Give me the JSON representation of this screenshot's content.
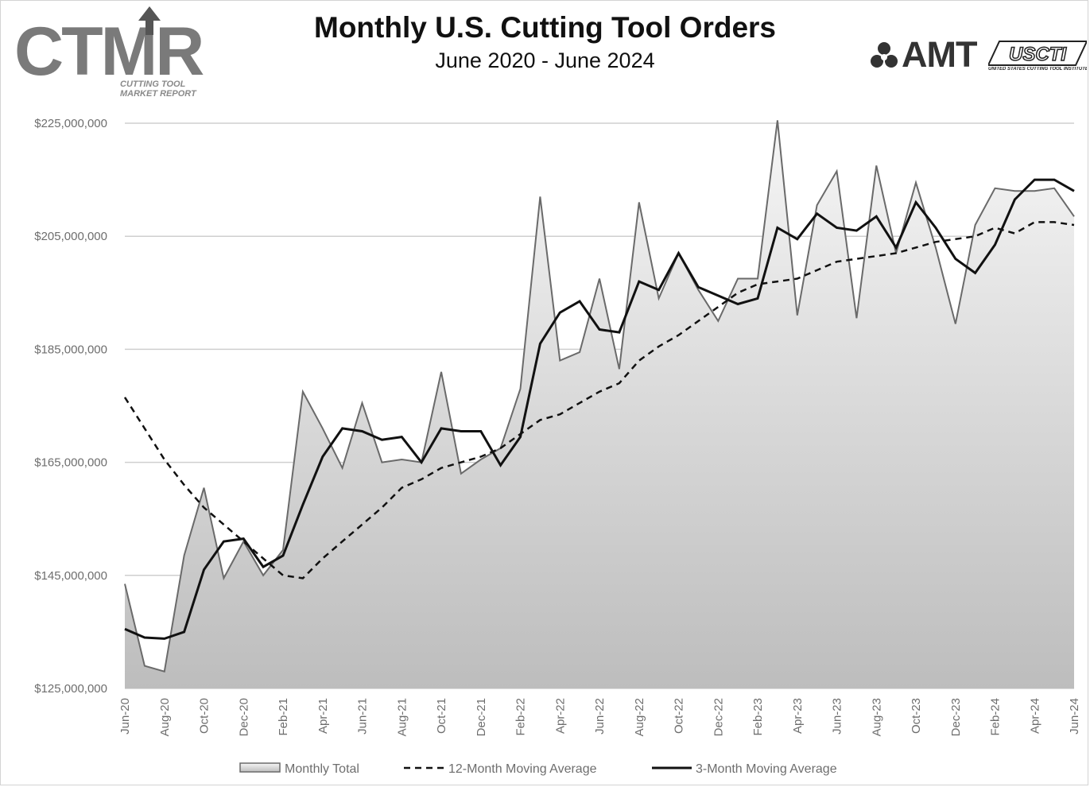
{
  "header": {
    "title": "Monthly U.S. Cutting Tool Orders",
    "subtitle": "June 2020 - June 2024"
  },
  "logos": {
    "ctmr": {
      "wordmark": "CTMR",
      "line1": "CUTTING TOOL",
      "line2": "MARKET REPORT"
    },
    "amt": {
      "wordmark": "AMT"
    },
    "usci": {
      "wordmark": "USCTI",
      "tagline": "UNITED STATES CUTTING TOOL INSTITUTE"
    }
  },
  "colors": {
    "area_top": "#f6f6f6",
    "area_bottom": "#bdbdbd",
    "monthly_line": "#6a6a6a",
    "moving_average": "#111111",
    "grid": "#cfcfcf"
  },
  "chart_data": {
    "type": "area",
    "title": "Monthly U.S. Cutting Tool Orders",
    "subtitle": "June 2020 - June 2024",
    "xlabel": "",
    "ylabel": "",
    "ylim": [
      125000000,
      225000000
    ],
    "yticks": [
      125000000,
      145000000,
      165000000,
      185000000,
      205000000,
      225000000
    ],
    "ytick_labels": [
      "$125,000,000",
      "$145,000,000",
      "$165,000,000",
      "$185,000,000",
      "$205,000,000",
      "$225,000,000"
    ],
    "grid": "horizontal",
    "legend_position": "bottom",
    "x": [
      "Jun-20",
      "Jul-20",
      "Aug-20",
      "Sep-20",
      "Oct-20",
      "Nov-20",
      "Dec-20",
      "Jan-21",
      "Feb-21",
      "Mar-21",
      "Apr-21",
      "May-21",
      "Jun-21",
      "Jul-21",
      "Aug-21",
      "Sep-21",
      "Oct-21",
      "Nov-21",
      "Dec-21",
      "Jan-22",
      "Feb-22",
      "Mar-22",
      "Apr-22",
      "May-22",
      "Jun-22",
      "Jul-22",
      "Aug-22",
      "Sep-22",
      "Oct-22",
      "Nov-22",
      "Dec-22",
      "Jan-23",
      "Feb-23",
      "Mar-23",
      "Apr-23",
      "May-23",
      "Jun-23",
      "Jul-23",
      "Aug-23",
      "Sep-23",
      "Oct-23",
      "Nov-23",
      "Dec-23",
      "Jan-24",
      "Feb-24",
      "Mar-24",
      "Apr-24",
      "May-24",
      "Jun-24"
    ],
    "xtick_labels": [
      "Jun-20",
      "Aug-20",
      "Oct-20",
      "Dec-20",
      "Feb-21",
      "Apr-21",
      "Jun-21",
      "Aug-21",
      "Oct-21",
      "Dec-21",
      "Feb-22",
      "Apr-22",
      "Jun-22",
      "Aug-22",
      "Oct-22",
      "Dec-22",
      "Feb-23",
      "Apr-23",
      "Jun-23",
      "Aug-23",
      "Oct-23",
      "Dec-23",
      "Feb-24",
      "Apr-24",
      "Jun-24"
    ],
    "series": [
      {
        "name": "Monthly Total",
        "style": "area",
        "values": [
          143500000,
          129000000,
          128000000,
          148500000,
          160500000,
          144500000,
          151000000,
          145000000,
          149500000,
          177500000,
          171000000,
          164000000,
          175500000,
          165000000,
          165500000,
          165000000,
          181000000,
          163000000,
          165500000,
          167500000,
          178000000,
          212000000,
          183000000,
          184500000,
          197500000,
          181500000,
          211000000,
          194000000,
          202000000,
          195500000,
          190000000,
          197500000,
          197500000,
          225500000,
          191000000,
          210500000,
          216500000,
          190500000,
          217500000,
          202000000,
          214500000,
          203000000,
          189500000,
          207000000,
          213500000,
          213000000,
          213000000,
          213500000,
          208500000
        ]
      },
      {
        "name": "12-Month Moving Average",
        "style": "dashed",
        "values": [
          176500000,
          171000000,
          165500000,
          161000000,
          157000000,
          154000000,
          151000000,
          148000000,
          145000000,
          144500000,
          148000000,
          151000000,
          154000000,
          157000000,
          160500000,
          162000000,
          164000000,
          165000000,
          166000000,
          167500000,
          170000000,
          172500000,
          173500000,
          175500000,
          177500000,
          179000000,
          183000000,
          185500000,
          187500000,
          190000000,
          192500000,
          195000000,
          196500000,
          197000000,
          197500000,
          199000000,
          200500000,
          201000000,
          201500000,
          202000000,
          203000000,
          204000000,
          204500000,
          205000000,
          206500000,
          205500000,
          207500000,
          207500000,
          207000000
        ]
      },
      {
        "name": "3-Month Moving Average",
        "style": "solid",
        "values": [
          135500000,
          134000000,
          133800000,
          135000000,
          146000000,
          151000000,
          151500000,
          146500000,
          148500000,
          157500000,
          166000000,
          171000000,
          170500000,
          169000000,
          169500000,
          165000000,
          171000000,
          170500000,
          170500000,
          164500000,
          169500000,
          186000000,
          191500000,
          193500000,
          188500000,
          188000000,
          197000000,
          195500000,
          202000000,
          196000000,
          194500000,
          193000000,
          194000000,
          206500000,
          204500000,
          209000000,
          206500000,
          206000000,
          208500000,
          203000000,
          211000000,
          206500000,
          201000000,
          198500000,
          203500000,
          211500000,
          215000000,
          215000000,
          213000000
        ]
      }
    ]
  }
}
